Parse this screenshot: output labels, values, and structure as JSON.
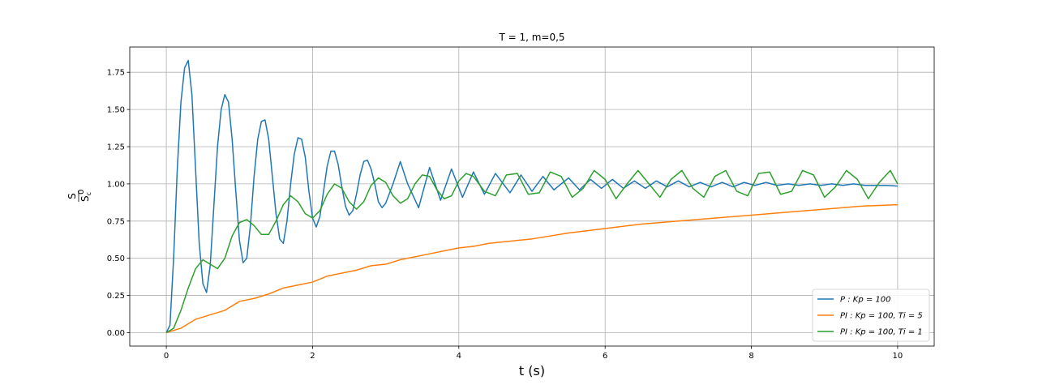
{
  "chart_data": {
    "type": "line",
    "title": "T = 1, m=0,5",
    "xlabel": "t (s)",
    "ylabel": "S / S_c^0",
    "ylabel_numerator": "S",
    "ylabel_denominator": "S",
    "ylabel_sub": "c",
    "ylabel_sup": "0",
    "xlim": [
      -0.5,
      10.5
    ],
    "ylim": [
      -0.09,
      1.92
    ],
    "xticks": [
      0,
      2,
      4,
      6,
      8,
      10
    ],
    "yticks": [
      0.0,
      0.25,
      0.5,
      0.75,
      1.0,
      1.25,
      1.5,
      1.75
    ],
    "xtick_labels": [
      "0",
      "2",
      "4",
      "6",
      "8",
      "10"
    ],
    "ytick_labels": [
      "0.00",
      "0.25",
      "0.50",
      "0.75",
      "1.00",
      "1.25",
      "1.50",
      "1.75"
    ],
    "grid": true,
    "legend_position": "lower-right",
    "series": [
      {
        "name": "P : K_p = 100",
        "legend": "P : Kp = 100",
        "color": "#1f77b4",
        "x": [
          0,
          0.05,
          0.1,
          0.15,
          0.2,
          0.25,
          0.3,
          0.35,
          0.4,
          0.45,
          0.5,
          0.55,
          0.6,
          0.65,
          0.7,
          0.75,
          0.8,
          0.85,
          0.9,
          0.95,
          1.0,
          1.05,
          1.1,
          1.15,
          1.2,
          1.25,
          1.3,
          1.35,
          1.4,
          1.45,
          1.5,
          1.55,
          1.6,
          1.65,
          1.7,
          1.75,
          1.8,
          1.85,
          1.9,
          1.95,
          2.0,
          2.05,
          2.1,
          2.15,
          2.2,
          2.25,
          2.3,
          2.35,
          2.4,
          2.45,
          2.5,
          2.55,
          2.6,
          2.65,
          2.7,
          2.75,
          2.8,
          2.85,
          2.9,
          2.95,
          3.0,
          3.1,
          3.2,
          3.3,
          3.45,
          3.6,
          3.75,
          3.9,
          4.05,
          4.2,
          4.35,
          4.5,
          4.7,
          4.85,
          5.0,
          5.15,
          5.3,
          5.5,
          5.65,
          5.8,
          5.95,
          6.1,
          6.25,
          6.4,
          6.55,
          6.7,
          6.85,
          7.0,
          7.15,
          7.3,
          7.45,
          7.6,
          7.75,
          7.9,
          8.05,
          8.2,
          8.35,
          8.5,
          8.65,
          8.8,
          8.95,
          9.1,
          9.25,
          9.4,
          9.55,
          9.7,
          9.85,
          10.0
        ],
        "values": [
          0,
          0.05,
          0.5,
          1.1,
          1.55,
          1.78,
          1.83,
          1.6,
          1.1,
          0.6,
          0.33,
          0.27,
          0.45,
          0.85,
          1.25,
          1.5,
          1.6,
          1.55,
          1.3,
          0.95,
          0.62,
          0.47,
          0.5,
          0.72,
          1.05,
          1.3,
          1.42,
          1.43,
          1.3,
          1.05,
          0.8,
          0.63,
          0.6,
          0.75,
          1.0,
          1.2,
          1.31,
          1.3,
          1.18,
          0.95,
          0.77,
          0.71,
          0.78,
          0.95,
          1.12,
          1.22,
          1.22,
          1.13,
          0.98,
          0.85,
          0.79,
          0.82,
          0.93,
          1.06,
          1.15,
          1.16,
          1.1,
          1.0,
          0.88,
          0.84,
          0.87,
          1.0,
          1.15,
          1.0,
          0.84,
          1.11,
          0.89,
          1.1,
          0.91,
          1.08,
          0.93,
          1.07,
          0.94,
          1.06,
          0.95,
          1.05,
          0.96,
          1.04,
          0.96,
          1.03,
          0.97,
          1.03,
          0.97,
          1.02,
          0.97,
          1.02,
          0.98,
          1.02,
          0.98,
          1.01,
          0.98,
          1.01,
          0.98,
          1.01,
          0.99,
          1.01,
          0.99,
          1.0,
          0.99,
          1.0,
          0.99,
          1.0,
          0.99,
          1.0,
          0.99,
          0.99,
          0.99,
          0.985
        ]
      },
      {
        "name": "PI : K_p = 100, T_i = 5",
        "legend": "PI : Kp = 100, Ti = 5",
        "color": "#ff7f0e",
        "x": [
          0,
          0.2,
          0.4,
          0.6,
          0.8,
          1.0,
          1.2,
          1.4,
          1.6,
          1.8,
          2.0,
          2.2,
          2.4,
          2.6,
          2.8,
          3.0,
          3.2,
          3.4,
          3.6,
          3.8,
          4.0,
          4.2,
          4.4,
          4.6,
          4.8,
          5.0,
          5.5,
          6.0,
          6.5,
          7.0,
          7.5,
          8.0,
          8.5,
          9.0,
          9.5,
          10.0
        ],
        "values": [
          0,
          0.03,
          0.09,
          0.12,
          0.15,
          0.21,
          0.23,
          0.26,
          0.3,
          0.32,
          0.34,
          0.38,
          0.4,
          0.42,
          0.45,
          0.46,
          0.49,
          0.51,
          0.53,
          0.55,
          0.57,
          0.58,
          0.6,
          0.61,
          0.62,
          0.63,
          0.67,
          0.7,
          0.73,
          0.75,
          0.77,
          0.79,
          0.81,
          0.83,
          0.85,
          0.86
        ]
      },
      {
        "name": "PI : K_p = 100, T_i = 1",
        "legend": "PI : Kp = 100, Ti = 1",
        "color": "#2ca02c",
        "x": [
          0,
          0.1,
          0.2,
          0.3,
          0.4,
          0.5,
          0.6,
          0.7,
          0.8,
          0.9,
          1.0,
          1.1,
          1.2,
          1.3,
          1.4,
          1.5,
          1.6,
          1.7,
          1.8,
          1.9,
          2.0,
          2.1,
          2.2,
          2.3,
          2.4,
          2.5,
          2.6,
          2.7,
          2.8,
          2.9,
          3.0,
          3.1,
          3.2,
          3.3,
          3.4,
          3.5,
          3.6,
          3.7,
          3.8,
          3.9,
          4.0,
          4.1,
          4.2,
          4.35,
          4.5,
          4.65,
          4.8,
          4.95,
          5.1,
          5.25,
          5.4,
          5.55,
          5.7,
          5.85,
          6.0,
          6.15,
          6.3,
          6.45,
          6.6,
          6.75,
          6.9,
          7.05,
          7.2,
          7.35,
          7.5,
          7.65,
          7.8,
          7.95,
          8.1,
          8.25,
          8.4,
          8.55,
          8.7,
          8.85,
          9.0,
          9.15,
          9.3,
          9.45,
          9.6,
          9.75,
          9.9,
          10.0
        ],
        "values": [
          0,
          0.03,
          0.15,
          0.3,
          0.43,
          0.49,
          0.46,
          0.43,
          0.5,
          0.65,
          0.74,
          0.76,
          0.72,
          0.66,
          0.66,
          0.75,
          0.86,
          0.92,
          0.88,
          0.8,
          0.77,
          0.82,
          0.93,
          1.0,
          0.97,
          0.88,
          0.83,
          0.88,
          0.99,
          1.04,
          1.01,
          0.92,
          0.87,
          0.9,
          1.0,
          1.06,
          1.05,
          0.96,
          0.9,
          0.92,
          1.02,
          1.07,
          1.05,
          0.95,
          0.92,
          1.06,
          1.07,
          0.93,
          0.94,
          1.08,
          1.05,
          0.91,
          0.97,
          1.09,
          1.03,
          0.9,
          1.0,
          1.09,
          1.0,
          0.91,
          1.03,
          1.09,
          0.97,
          0.91,
          1.05,
          1.09,
          0.95,
          0.92,
          1.07,
          1.08,
          0.93,
          0.95,
          1.09,
          1.06,
          0.91,
          0.98,
          1.09,
          1.03,
          0.9,
          1.01,
          1.09,
          1.0
        ]
      }
    ]
  }
}
